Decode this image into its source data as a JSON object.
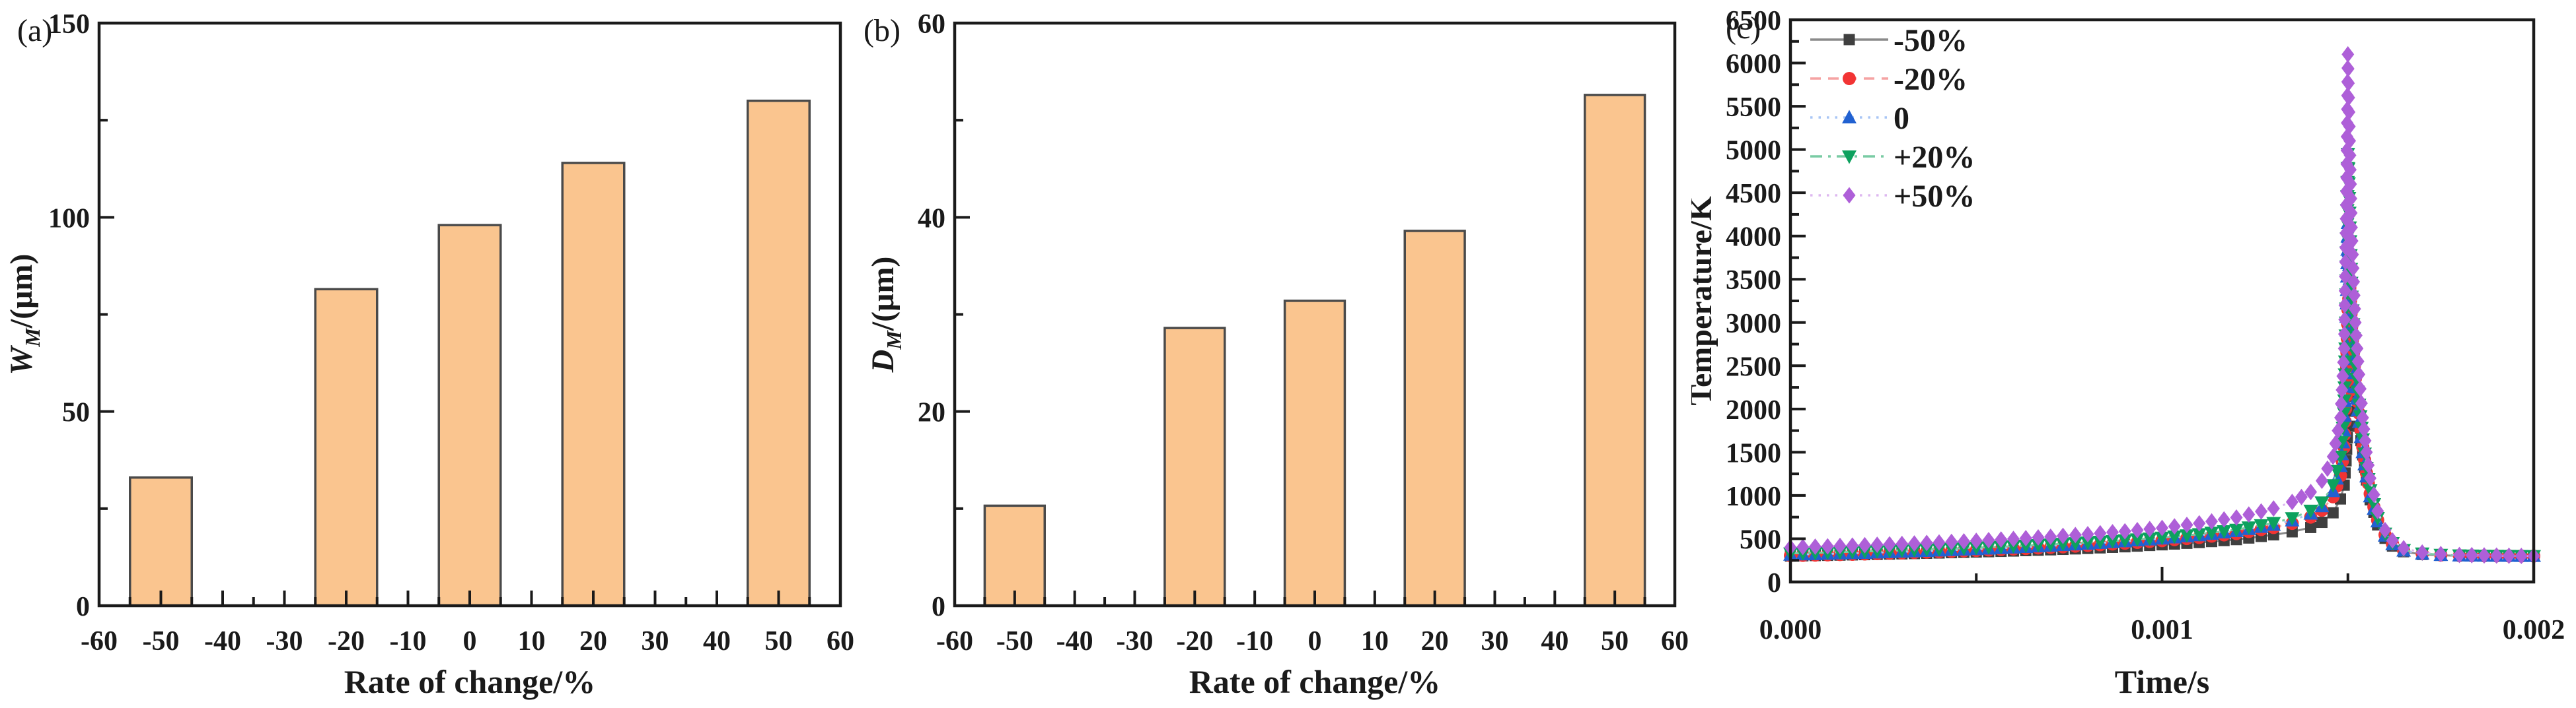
{
  "figure_label": "microstructure-and-temperature-figure",
  "colors": {
    "background": "#ffffff",
    "frame": "#1a1a1a",
    "bar_fill": "#FAC58F",
    "bar_edge": "#4a4a4a"
  },
  "chart_data": [
    {
      "id": "a",
      "type": "bar",
      "panel_label": "(a)",
      "xlabel": "Rate of change/%",
      "ylabel_var": "W",
      "ylabel_sub": "M",
      "ylabel_unit": "/(μm)",
      "xlim": [
        -60,
        60
      ],
      "ylim": [
        0,
        150
      ],
      "x_major": [
        -60,
        -50,
        -40,
        -30,
        -20,
        -10,
        0,
        10,
        20,
        30,
        40,
        50,
        60
      ],
      "x_major_labels": [
        "-60",
        "-50",
        "-40",
        "-30",
        "-20",
        "-10",
        "0",
        "10",
        "20",
        "30",
        "40",
        "50",
        "60"
      ],
      "x_minor": [
        -55,
        -45,
        -35,
        -25,
        -15,
        -5,
        5,
        15,
        25,
        35,
        45,
        55
      ],
      "y_major": [
        0,
        50,
        100,
        150
      ],
      "y_major_labels": [
        "0",
        "50",
        "100",
        "150"
      ],
      "y_minor": [
        25,
        75,
        125
      ],
      "categories": [
        -50,
        -20,
        0,
        20,
        50
      ],
      "values": [
        33,
        81.5,
        98,
        114,
        130
      ],
      "bar_width_units": 10,
      "grid": false
    },
    {
      "id": "b",
      "type": "bar",
      "panel_label": "(b)",
      "xlabel": "Rate of change/%",
      "ylabel_var": "D",
      "ylabel_sub": "M",
      "ylabel_unit": "/(μm)",
      "xlim": [
        -60,
        60
      ],
      "ylim": [
        0,
        60
      ],
      "x_major": [
        -60,
        -50,
        -40,
        -30,
        -20,
        -10,
        0,
        10,
        20,
        30,
        40,
        50,
        60
      ],
      "x_major_labels": [
        "-60",
        "-50",
        "-40",
        "-30",
        "-20",
        "-10",
        "0",
        "10",
        "20",
        "30",
        "40",
        "50",
        "60"
      ],
      "x_minor": [
        -55,
        -45,
        -35,
        -25,
        -15,
        -5,
        5,
        15,
        25,
        35,
        45,
        55
      ],
      "y_major": [
        0,
        20,
        40,
        60
      ],
      "y_major_labels": [
        "0",
        "20",
        "40",
        "60"
      ],
      "y_minor": [
        10,
        30,
        50
      ],
      "categories": [
        -50,
        -20,
        0,
        20,
        50
      ],
      "values": [
        10.3,
        28.6,
        31.4,
        38.6,
        52.6
      ],
      "bar_width_units": 10,
      "grid": false
    },
    {
      "id": "c",
      "type": "scatter",
      "panel_label": "(c)",
      "xlabel": "Time/s",
      "ylabel": "Temperature/K",
      "xlim": [
        0,
        0.002
      ],
      "ylim": [
        0,
        6500
      ],
      "x_major": [
        0,
        0.001,
        0.002
      ],
      "x_major_labels": [
        "0.000",
        "0.001",
        "0.002"
      ],
      "x_minor": [
        0.0005,
        0.0015
      ],
      "y_major": [
        0,
        500,
        1000,
        1500,
        2000,
        2500,
        3000,
        3500,
        4000,
        4500,
        5000,
        5500,
        6000,
        6500
      ],
      "y_major_labels": [
        "0",
        "500",
        "1000",
        "1500",
        "2000",
        "2500",
        "3000",
        "3500",
        "4000",
        "4500",
        "5000",
        "5500",
        "6000",
        "6500"
      ],
      "y_minor": [
        250,
        750,
        1250,
        1750,
        2250,
        2750,
        3250,
        3750,
        4250,
        4750,
        5250,
        5750,
        6250
      ],
      "legend_position": "top-left",
      "x": [
        0,
        0.0001,
        0.0002,
        0.0003,
        0.0004,
        0.0005,
        0.0006,
        0.0007,
        0.0008,
        0.0009,
        0.001,
        0.0011,
        0.0012,
        0.0013,
        0.00135,
        0.0014,
        0.00143,
        0.00146,
        0.00148,
        0.00149,
        0.001495,
        0.0015,
        0.001505,
        0.00151,
        0.00152,
        0.00153,
        0.00154,
        0.00155,
        0.00156,
        0.00158,
        0.0016,
        0.00162,
        0.00165,
        0.0017,
        0.00175,
        0.0018,
        0.0019,
        0.002
      ],
      "series": [
        {
          "name": "-50%",
          "marker": "square",
          "color": "#3F3F3F",
          "line_color": "#8a8a8a",
          "line_style": "solid",
          "values": [
            300,
            308,
            316,
            325,
            335,
            346,
            358,
            372,
            388,
            407,
            430,
            456,
            490,
            545,
            580,
            630,
            690,
            800,
            960,
            1120,
            1400,
            1800,
            2150,
            2250,
            2150,
            1800,
            1470,
            1180,
            950,
            660,
            505,
            415,
            350,
            318,
            308,
            303,
            300,
            300
          ]
        },
        {
          "name": "-20%",
          "marker": "circle",
          "color": "#F23434",
          "line_color": "#F5A3A3",
          "line_style": "dashed",
          "values": [
            305,
            314,
            324,
            336,
            349,
            364,
            381,
            400,
            422,
            448,
            478,
            515,
            560,
            630,
            678,
            750,
            830,
            985,
            1230,
            1560,
            2150,
            3150,
            3400,
            2950,
            2350,
            1950,
            1560,
            1260,
            1020,
            715,
            545,
            440,
            365,
            327,
            312,
            306,
            302,
            300
          ]
        },
        {
          "name": "0",
          "marker": "triangle-up",
          "color": "#2161D1",
          "line_color": "#A9C6F5",
          "line_style": "dotted",
          "values": [
            315,
            325,
            336,
            349,
            363,
            379,
            397,
            418,
            442,
            470,
            502,
            540,
            588,
            660,
            710,
            790,
            875,
            1050,
            1340,
            1750,
            2600,
            4150,
            3500,
            2900,
            2250,
            1850,
            1500,
            1220,
            990,
            700,
            535,
            435,
            362,
            326,
            312,
            306,
            302,
            300
          ]
        },
        {
          "name": "+20%",
          "marker": "triangle-down",
          "color": "#0DA15E",
          "line_color": "#79CBA4",
          "line_style": "dashdot",
          "values": [
            330,
            341,
            353,
            366,
            380,
            396,
            414,
            434,
            457,
            483,
            513,
            553,
            605,
            683,
            738,
            825,
            920,
            1120,
            1450,
            1950,
            3000,
            4950,
            4100,
            3300,
            2500,
            2050,
            1650,
            1320,
            1060,
            740,
            560,
            450,
            370,
            330,
            315,
            308,
            303,
            300
          ]
        },
        {
          "name": "+50%",
          "marker": "diamond",
          "color": "#AE5FD8",
          "line_color": "#DDB8F0",
          "line_style": "dotted",
          "values": [
            400,
            412,
            425,
            440,
            457,
            476,
            498,
            523,
            552,
            586,
            625,
            678,
            745,
            850,
            925,
            1040,
            1170,
            1450,
            1900,
            2700,
            4200,
            6100,
            5100,
            4100,
            3000,
            2400,
            1900,
            1500,
            1200,
            820,
            600,
            480,
            390,
            340,
            322,
            312,
            305,
            300
          ]
        }
      ]
    }
  ]
}
